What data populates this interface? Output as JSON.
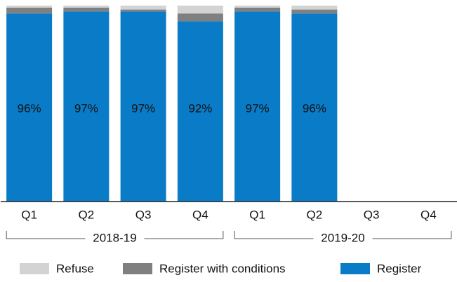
{
  "chart_data": {
    "type": "stacked-bar",
    "categories": [
      "Q1",
      "Q2",
      "Q3",
      "Q4",
      "Q1",
      "Q2",
      "Q3",
      "Q4"
    ],
    "groups": [
      "2018-19",
      "2019-20"
    ],
    "ylim": [
      0,
      100
    ],
    "series": [
      {
        "name": "Register",
        "color": "#0a7cc7",
        "values": [
          96,
          97,
          97,
          92,
          97,
          96,
          null,
          null
        ],
        "value_labels": [
          "96%",
          "97%",
          "97%",
          "92%",
          "97%",
          "96%",
          null,
          null
        ]
      },
      {
        "name": "Register with conditions",
        "color": "#808080",
        "values": [
          3,
          2,
          1,
          4,
          2,
          2,
          null,
          null
        ]
      },
      {
        "name": "Refuse",
        "color": "#d3d3d3",
        "values": [
          1,
          1,
          2,
          4,
          1,
          2,
          null,
          null
        ]
      }
    ],
    "legend": "bottom"
  }
}
